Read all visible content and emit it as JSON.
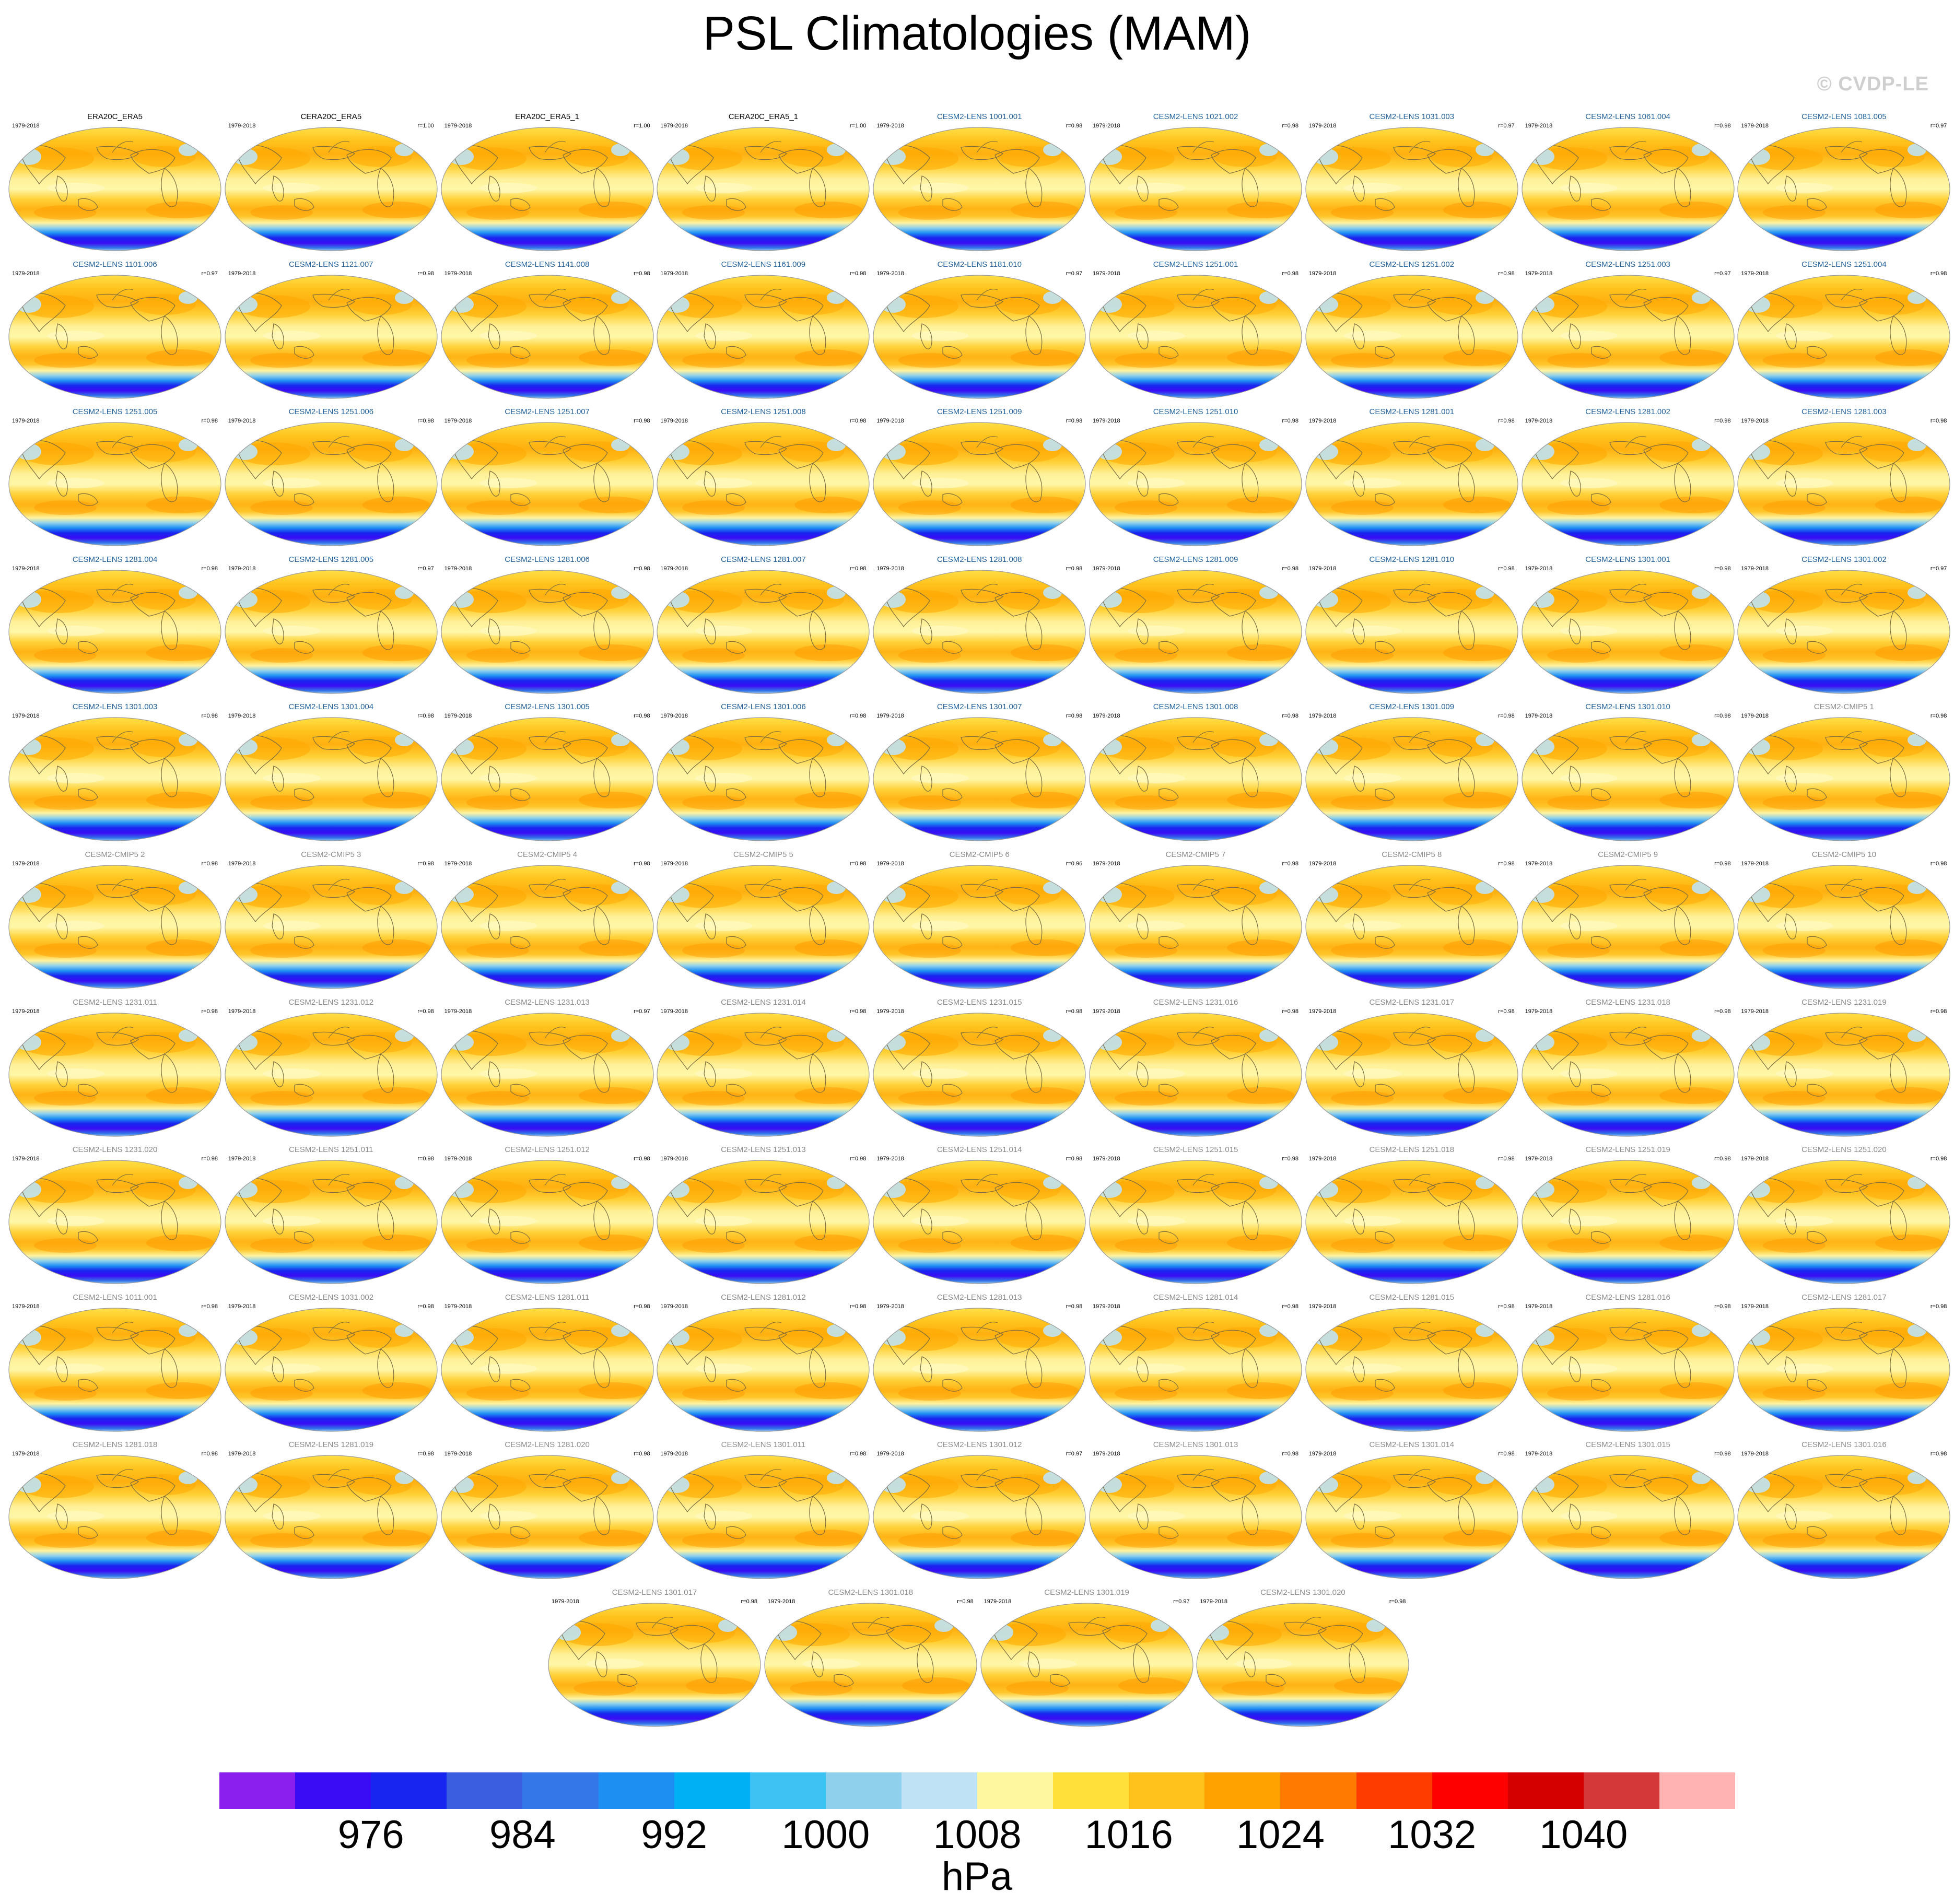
{
  "title": "PSL Climatologies (MAM)",
  "watermark": "© CVDP-LE",
  "years": "1979-2018",
  "colors": {
    "obs_title": "#000000",
    "lens_title": "#1f5f9a",
    "cmip_title": "#8a8a8a"
  },
  "panels": [
    {
      "name": "ERA20C_ERA5",
      "r": "",
      "style": "obs"
    },
    {
      "name": "CERA20C_ERA5",
      "r": "r=1.00",
      "style": "obs"
    },
    {
      "name": "ERA20C_ERA5_1",
      "r": "r=1.00",
      "style": "obs"
    },
    {
      "name": "CERA20C_ERA5_1",
      "r": "r=1.00",
      "style": "obs"
    },
    {
      "name": "CESM2-LENS 1001.001",
      "r": "r=0.98",
      "style": "lens"
    },
    {
      "name": "CESM2-LENS 1021.002",
      "r": "r=0.98",
      "style": "lens"
    },
    {
      "name": "CESM2-LENS 1031.003",
      "r": "r=0.97",
      "style": "lens"
    },
    {
      "name": "CESM2-LENS 1061.004",
      "r": "r=0.98",
      "style": "lens"
    },
    {
      "name": "CESM2-LENS 1081.005",
      "r": "r=0.97",
      "style": "lens"
    },
    {
      "name": "CESM2-LENS 1101.006",
      "r": "r=0.97",
      "style": "lens"
    },
    {
      "name": "CESM2-LENS 1121.007",
      "r": "r=0.98",
      "style": "lens"
    },
    {
      "name": "CESM2-LENS 1141.008",
      "r": "r=0.98",
      "style": "lens"
    },
    {
      "name": "CESM2-LENS 1161.009",
      "r": "r=0.98",
      "style": "lens"
    },
    {
      "name": "CESM2-LENS 1181.010",
      "r": "r=0.97",
      "style": "lens"
    },
    {
      "name": "CESM2-LENS 1251.001",
      "r": "r=0.98",
      "style": "lens"
    },
    {
      "name": "CESM2-LENS 1251.002",
      "r": "r=0.98",
      "style": "lens"
    },
    {
      "name": "CESM2-LENS 1251.003",
      "r": "r=0.97",
      "style": "lens"
    },
    {
      "name": "CESM2-LENS 1251.004",
      "r": "r=0.98",
      "style": "lens"
    },
    {
      "name": "CESM2-LENS 1251.005",
      "r": "r=0.98",
      "style": "lens"
    },
    {
      "name": "CESM2-LENS 1251.006",
      "r": "r=0.98",
      "style": "lens"
    },
    {
      "name": "CESM2-LENS 1251.007",
      "r": "r=0.98",
      "style": "lens"
    },
    {
      "name": "CESM2-LENS 1251.008",
      "r": "r=0.98",
      "style": "lens"
    },
    {
      "name": "CESM2-LENS 1251.009",
      "r": "r=0.98",
      "style": "lens"
    },
    {
      "name": "CESM2-LENS 1251.010",
      "r": "r=0.98",
      "style": "lens"
    },
    {
      "name": "CESM2-LENS 1281.001",
      "r": "r=0.98",
      "style": "lens"
    },
    {
      "name": "CESM2-LENS 1281.002",
      "r": "r=0.98",
      "style": "lens"
    },
    {
      "name": "CESM2-LENS 1281.003",
      "r": "r=0.98",
      "style": "lens"
    },
    {
      "name": "CESM2-LENS 1281.004",
      "r": "r=0.98",
      "style": "lens"
    },
    {
      "name": "CESM2-LENS 1281.005",
      "r": "r=0.97",
      "style": "lens"
    },
    {
      "name": "CESM2-LENS 1281.006",
      "r": "r=0.98",
      "style": "lens"
    },
    {
      "name": "CESM2-LENS 1281.007",
      "r": "r=0.98",
      "style": "lens"
    },
    {
      "name": "CESM2-LENS 1281.008",
      "r": "r=0.98",
      "style": "lens"
    },
    {
      "name": "CESM2-LENS 1281.009",
      "r": "r=0.98",
      "style": "lens"
    },
    {
      "name": "CESM2-LENS 1281.010",
      "r": "r=0.98",
      "style": "lens"
    },
    {
      "name": "CESM2-LENS 1301.001",
      "r": "r=0.98",
      "style": "lens"
    },
    {
      "name": "CESM2-LENS 1301.002",
      "r": "r=0.97",
      "style": "lens"
    },
    {
      "name": "CESM2-LENS 1301.003",
      "r": "r=0.98",
      "style": "lens"
    },
    {
      "name": "CESM2-LENS 1301.004",
      "r": "r=0.98",
      "style": "lens"
    },
    {
      "name": "CESM2-LENS 1301.005",
      "r": "r=0.98",
      "style": "lens"
    },
    {
      "name": "CESM2-LENS 1301.006",
      "r": "r=0.98",
      "style": "lens"
    },
    {
      "name": "CESM2-LENS 1301.007",
      "r": "r=0.98",
      "style": "lens"
    },
    {
      "name": "CESM2-LENS 1301.008",
      "r": "r=0.98",
      "style": "lens"
    },
    {
      "name": "CESM2-LENS 1301.009",
      "r": "r=0.98",
      "style": "lens"
    },
    {
      "name": "CESM2-LENS 1301.010",
      "r": "r=0.98",
      "style": "lens"
    },
    {
      "name": "CESM2-CMIP5 1",
      "r": "r=0.98",
      "style": "cmip"
    },
    {
      "name": "CESM2-CMIP5 2",
      "r": "r=0.98",
      "style": "cmip"
    },
    {
      "name": "CESM2-CMIP5 3",
      "r": "r=0.98",
      "style": "cmip"
    },
    {
      "name": "CESM2-CMIP5 4",
      "r": "r=0.98",
      "style": "cmip"
    },
    {
      "name": "CESM2-CMIP5 5",
      "r": "r=0.98",
      "style": "cmip"
    },
    {
      "name": "CESM2-CMIP5 6",
      "r": "r=0.96",
      "style": "cmip"
    },
    {
      "name": "CESM2-CMIP5 7",
      "r": "r=0.98",
      "style": "cmip"
    },
    {
      "name": "CESM2-CMIP5 8",
      "r": "r=0.98",
      "style": "cmip"
    },
    {
      "name": "CESM2-CMIP5 9",
      "r": "r=0.98",
      "style": "cmip"
    },
    {
      "name": "CESM2-CMIP5 10",
      "r": "r=0.98",
      "style": "cmip"
    },
    {
      "name": "CESM2-LENS 1231.011",
      "r": "r=0.98",
      "style": "cmip"
    },
    {
      "name": "CESM2-LENS 1231.012",
      "r": "r=0.98",
      "style": "cmip"
    },
    {
      "name": "CESM2-LENS 1231.013",
      "r": "r=0.97",
      "style": "cmip"
    },
    {
      "name": "CESM2-LENS 1231.014",
      "r": "r=0.98",
      "style": "cmip"
    },
    {
      "name": "CESM2-LENS 1231.015",
      "r": "r=0.98",
      "style": "cmip"
    },
    {
      "name": "CESM2-LENS 1231.016",
      "r": "r=0.98",
      "style": "cmip"
    },
    {
      "name": "CESM2-LENS 1231.017",
      "r": "r=0.98",
      "style": "cmip"
    },
    {
      "name": "CESM2-LENS 1231.018",
      "r": "r=0.98",
      "style": "cmip"
    },
    {
      "name": "CESM2-LENS 1231.019",
      "r": "r=0.98",
      "style": "cmip"
    },
    {
      "name": "CESM2-LENS 1231.020",
      "r": "r=0.98",
      "style": "cmip"
    },
    {
      "name": "CESM2-LENS 1251.011",
      "r": "r=0.98",
      "style": "cmip"
    },
    {
      "name": "CESM2-LENS 1251.012",
      "r": "r=0.98",
      "style": "cmip"
    },
    {
      "name": "CESM2-LENS 1251.013",
      "r": "r=0.98",
      "style": "cmip"
    },
    {
      "name": "CESM2-LENS 1251.014",
      "r": "r=0.98",
      "style": "cmip"
    },
    {
      "name": "CESM2-LENS 1251.015",
      "r": "r=0.98",
      "style": "cmip"
    },
    {
      "name": "CESM2-LENS 1251.018",
      "r": "r=0.98",
      "style": "cmip"
    },
    {
      "name": "CESM2-LENS 1251.019",
      "r": "r=0.98",
      "style": "cmip"
    },
    {
      "name": "CESM2-LENS 1251.020",
      "r": "r=0.98",
      "style": "cmip"
    },
    {
      "name": "CESM2-LENS 1011.001",
      "r": "r=0.98",
      "style": "cmip"
    },
    {
      "name": "CESM2-LENS 1031.002",
      "r": "r=0.98",
      "style": "cmip"
    },
    {
      "name": "CESM2-LENS 1281.011",
      "r": "r=0.98",
      "style": "cmip"
    },
    {
      "name": "CESM2-LENS 1281.012",
      "r": "r=0.98",
      "style": "cmip"
    },
    {
      "name": "CESM2-LENS 1281.013",
      "r": "r=0.98",
      "style": "cmip"
    },
    {
      "name": "CESM2-LENS 1281.014",
      "r": "r=0.98",
      "style": "cmip"
    },
    {
      "name": "CESM2-LENS 1281.015",
      "r": "r=0.98",
      "style": "cmip"
    },
    {
      "name": "CESM2-LENS 1281.016",
      "r": "r=0.98",
      "style": "cmip"
    },
    {
      "name": "CESM2-LENS 1281.017",
      "r": "r=0.98",
      "style": "cmip"
    },
    {
      "name": "CESM2-LENS 1281.018",
      "r": "r=0.98",
      "style": "cmip"
    },
    {
      "name": "CESM2-LENS 1281.019",
      "r": "r=0.98",
      "style": "cmip"
    },
    {
      "name": "CESM2-LENS 1281.020",
      "r": "r=0.98",
      "style": "cmip"
    },
    {
      "name": "CESM2-LENS 1301.011",
      "r": "r=0.98",
      "style": "cmip"
    },
    {
      "name": "CESM2-LENS 1301.012",
      "r": "r=0.97",
      "style": "cmip"
    },
    {
      "name": "CESM2-LENS 1301.013",
      "r": "r=0.98",
      "style": "cmip"
    },
    {
      "name": "CESM2-LENS 1301.014",
      "r": "r=0.98",
      "style": "cmip"
    },
    {
      "name": "CESM2-LENS 1301.015",
      "r": "r=0.98",
      "style": "cmip"
    },
    {
      "name": "CESM2-LENS 1301.016",
      "r": "r=0.98",
      "style": "cmip"
    },
    {
      "name": "CESM2-LENS 1301.017",
      "r": "r=0.98",
      "style": "cmip"
    },
    {
      "name": "CESM2-LENS 1301.018",
      "r": "r=0.98",
      "style": "cmip"
    },
    {
      "name": "CESM2-LENS 1301.019",
      "r": "r=0.97",
      "style": "cmip"
    },
    {
      "name": "CESM2-LENS 1301.020",
      "r": "r=0.98",
      "style": "cmip"
    }
  ],
  "colorbar": {
    "units": "hPa",
    "labels": [
      "976",
      "984",
      "992",
      "1000",
      "1008",
      "1016",
      "1024",
      "1032",
      "1040"
    ],
    "colors": [
      "#8a1fee",
      "#3a0cf5",
      "#1824f0",
      "#3b5ee0",
      "#3377e8",
      "#1e8ff2",
      "#00b0f5",
      "#3ec2f4",
      "#8fd0ec",
      "#bfe3f4",
      "#fff7a0",
      "#ffe03a",
      "#ffc21c",
      "#ffa200",
      "#ff7a00",
      "#ff3c00",
      "#ff0000",
      "#d40000",
      "#d53838",
      "#ffb3b3"
    ]
  }
}
